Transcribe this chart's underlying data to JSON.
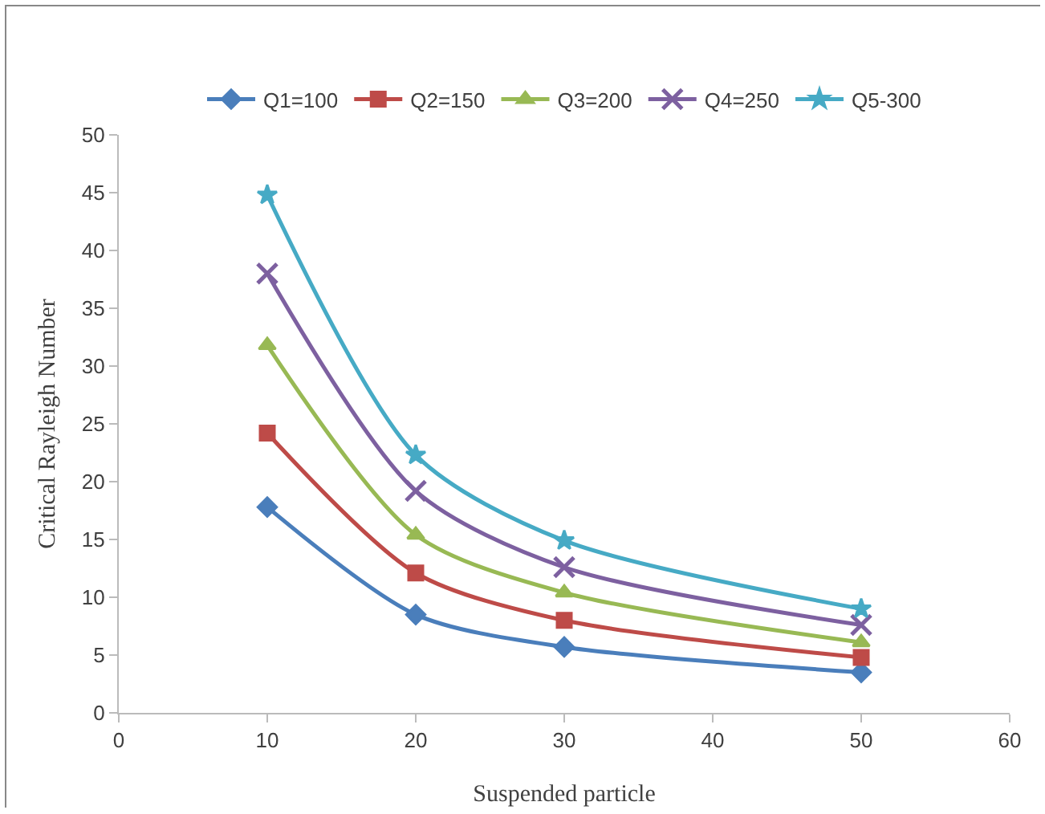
{
  "chart_data": {
    "type": "line",
    "xlabel": "Suspended particle",
    "ylabel": "Critical Rayleigh Number",
    "x": [
      10,
      20,
      30,
      50
    ],
    "series": [
      {
        "name": "Q1=100",
        "color": "#4a7ebb",
        "marker": "diamond",
        "values": [
          17.8,
          8.5,
          5.7,
          3.5
        ]
      },
      {
        "name": "Q2=150",
        "color": "#be4b48",
        "marker": "square",
        "values": [
          24.2,
          12.1,
          8.0,
          4.8
        ]
      },
      {
        "name": "Q3=200",
        "color": "#98b954",
        "marker": "triangle",
        "values": [
          31.8,
          15.4,
          10.4,
          6.1
        ]
      },
      {
        "name": "Q4=250",
        "color": "#7d60a0",
        "marker": "cross",
        "values": [
          38,
          19.2,
          12.6,
          7.6
        ]
      },
      {
        "name": "Q5-300",
        "color": "#46aac5",
        "marker": "star",
        "values": [
          44.8,
          22.3,
          14.9,
          9.0
        ]
      }
    ],
    "xlim": [
      0,
      60
    ],
    "xticks": [
      0,
      10,
      20,
      30,
      40,
      50,
      60
    ],
    "ylim": [
      0,
      50
    ],
    "yticks": [
      0,
      5,
      10,
      15,
      20,
      25,
      30,
      35,
      40,
      45,
      50
    ],
    "grid": false,
    "legend": "top",
    "line_style": "solid"
  }
}
